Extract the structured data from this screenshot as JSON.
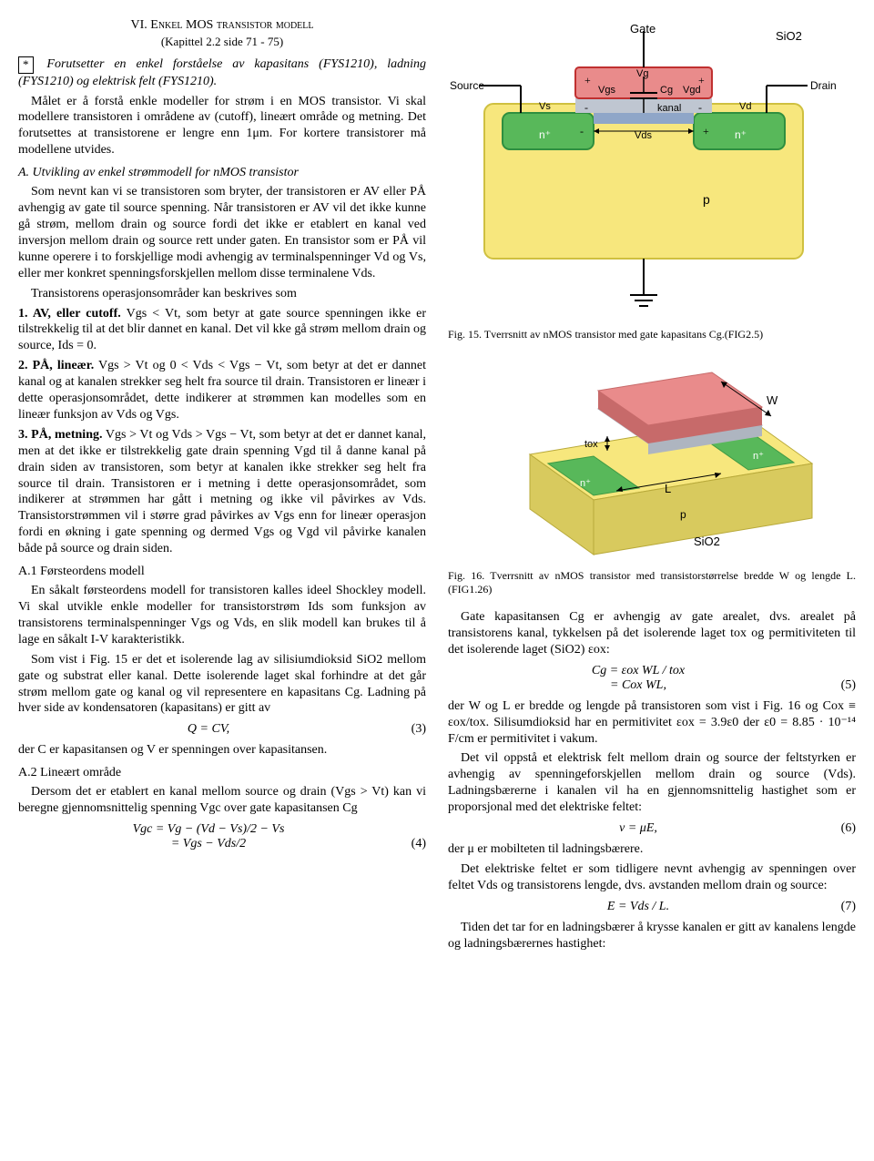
{
  "header": {
    "section_num": "VI.",
    "section_title": "Enkel MOS transistor modell",
    "subtitle": "(Kapittel 2.2 side 71 - 75)",
    "note_mark": "*",
    "note_text": "Forutsetter en enkel forståelse av kapasitans (FYS1210), ladning (FYS1210) og elektrisk felt (FYS1210)."
  },
  "paras": {
    "p1": "Målet er å forstå enkle modeller for strøm i en MOS transistor. Vi skal modellere transistoren i områdene av (cutoff), lineært område og metning. Det forutsettes at transistorene er lengre enn 1μm. For kortere transistorer må modellene utvides.",
    "subA": "A. Utvikling av enkel strømmodell for nMOS transistor",
    "p2": "Som nevnt kan vi se transistoren som bryter, der transistoren er AV eller PÅ avhengig av gate til source spenning. Når transistoren er AV vil det ikke kunne gå strøm, mellom drain og source fordi det ikke er etablert en kanal ved inversjon mellom drain og source rett under gaten. En transistor som er PÅ vil kunne operere i to forskjellige modi avhengig av terminalspenninger Vd og Vs, eller mer konkret spenningsforskjellen mellom disse terminalene Vds.",
    "p3": "Transistorens operasjonsområder kan beskrives som",
    "li1a": "1. AV, eller cutoff.",
    "li1b": " Vgs < Vt, som betyr at gate source spenningen ikke er tilstrekkelig til at det blir dannet en kanal. Det vil kke gå strøm mellom drain og source, Ids = 0.",
    "li2a": "2. PÅ, lineær.",
    "li2b": " Vgs > Vt og 0 < Vds < Vgs − Vt, som betyr at det er dannet kanal og at kanalen strekker seg helt fra source til drain. Transistoren er lineær i dette operasjonsområdet, dette indikerer at strømmen kan modelles som en lineær funksjon av Vds og Vgs.",
    "li3a": "3. PÅ, metning.",
    "li3b": " Vgs > Vt og Vds > Vgs − Vt, som betyr at det er dannet kanal, men at det ikke er tilstrekkelig gate drain spenning Vgd til å danne kanal på drain siden av transistoren, som betyr at kanalen ikke strekker seg helt fra source til drain. Transistoren er i metning i dette operasjonsområdet, som indikerer at strømmen har gått i metning og ikke vil påvirkes av Vds. Transistorstrømmen vil i større grad påvirkes av Vgs enn for lineær operasjon fordi en økning i gate spenning og dermed Vgs og Vgd vil påvirke kanalen både på source og drain siden.",
    "subA1": "A.1 Førsteordens modell",
    "p4": "En såkalt førsteordens modell for transistoren kalles ideel Shockley modell. Vi skal utvikle enkle modeller for transistorstrøm Ids som funksjon av transistorens terminalspenninger Vgs og Vds, en slik modell kan brukes til å lage en såkalt I-V karakteristikk.",
    "p5": "Som vist i Fig. 15 er det et isolerende lag av silisiumdioksid SiO2 mellom gate og substrat eller kanal. Dette isolerende laget skal forhindre at det går strøm mellom gate og kanal og vil representere en kapasitans Cg. Ladning på hver side av kondensatoren (kapasitans) er gitt av",
    "eq3": "Q   =   CV,",
    "eq3n": "(3)",
    "p6": "der C er kapasitansen og V er spenningen over kapasitansen.",
    "subA2": "A.2 Lineært område",
    "p7": "Dersom det er etablert en kanal mellom source og drain (Vgs > Vt) kan vi beregne gjennomsnittelig spenning Vgc over gate kapasitansen Cg",
    "eq4a": "Vgc   =   Vg − (Vd − Vs)/2 − Vs",
    "eq4b": "       =   Vgs − Vds/2",
    "eq4n": "(4)"
  },
  "right": {
    "fig15cap": "Fig. 15.    Tverrsnitt av nMOS transistor med gate kapasitans Cg.(FIG2.5)",
    "fig16cap": "Fig. 16.    Tverrsnitt av nMOS transistor med transistorstørrelse bredde W og lengde L. (FIG1.26)",
    "p1": "Gate kapasitansen Cg er avhengig av gate arealet, dvs. arealet på transistorens kanal, tykkelsen på det isolerende laget tox og permitiviteten til det isolerende laget (SiO2) εox:",
    "eq5a": "Cg   =   εox WL / tox",
    "eq5b": "      =   Cox WL,",
    "eq5n": "(5)",
    "p2": "der W og L er bredde og lengde på transistoren som vist i Fig. 16 og Cox ≡ εox/tox. Silisumdioksid har en permitivitet εox = 3.9ε0 der ε0 = 8.85 · 10⁻¹⁴ F/cm er permitivitet i vakum.",
    "p3": "Det vil oppstå et elektrisk felt mellom drain og source der feltstyrken er avhengig av spenningeforskjellen mellom drain og source (Vds). Ladningsbærerne i kanalen vil ha en gjennomsnittelig hastighet som er proporsjonal med det elektriske feltet:",
    "eq6": "ν   =   μE,",
    "eq6n": "(6)",
    "p4": "der μ er mobilteten til ladningsbærere.",
    "p5": "Det elektriske feltet er som tidligere nevnt avhengig av spenningen over feltet Vds og transistorens lengde, dvs. avstanden mellom drain og source:",
    "eq7": "E   =   Vds / L.",
    "eq7n": "(7)",
    "p6": "Tiden det tar for en ladningsbærer å krysse kanalen er gitt av kanalens lengde og ladningsbærernes hastighet:"
  },
  "fig15": {
    "labels": {
      "gate": "Gate",
      "sio2": "SiO2",
      "source": "Source",
      "drain": "Drain",
      "vg": "Vg",
      "vgs": "Vgs",
      "vgd": "Vgd",
      "cg": "Cg",
      "kanal": "kanal",
      "vs": "Vs",
      "vd": "Vd",
      "nplus": "n⁺",
      "vds": "Vds",
      "p": "p"
    },
    "colors": {
      "gate": "#e98b8b",
      "gate_stroke": "#c03030",
      "oxide": "#bfc6d1",
      "substrate": "#f7e77d",
      "substrate_stroke": "#cfc040",
      "ndiff": "#58b85a",
      "ndiff_stroke": "#2f8f3f",
      "channel": "#8fa6c8",
      "wire": "#000000"
    }
  },
  "fig16": {
    "labels": {
      "W": "W",
      "L": "L",
      "tox": "tox",
      "nplus": "n⁺",
      "p": "p",
      "sio2": "SiO2"
    },
    "colors": {
      "gate_top": "#e98b8b",
      "gate_side": "#c76a6a",
      "oxide_top": "#cfd4db",
      "oxide_side": "#aeb5c0",
      "sub_top": "#f7e77d",
      "sub_side": "#d8ca5e",
      "ndiff": "#58b85a",
      "ndiff_side": "#3f9a44"
    }
  }
}
